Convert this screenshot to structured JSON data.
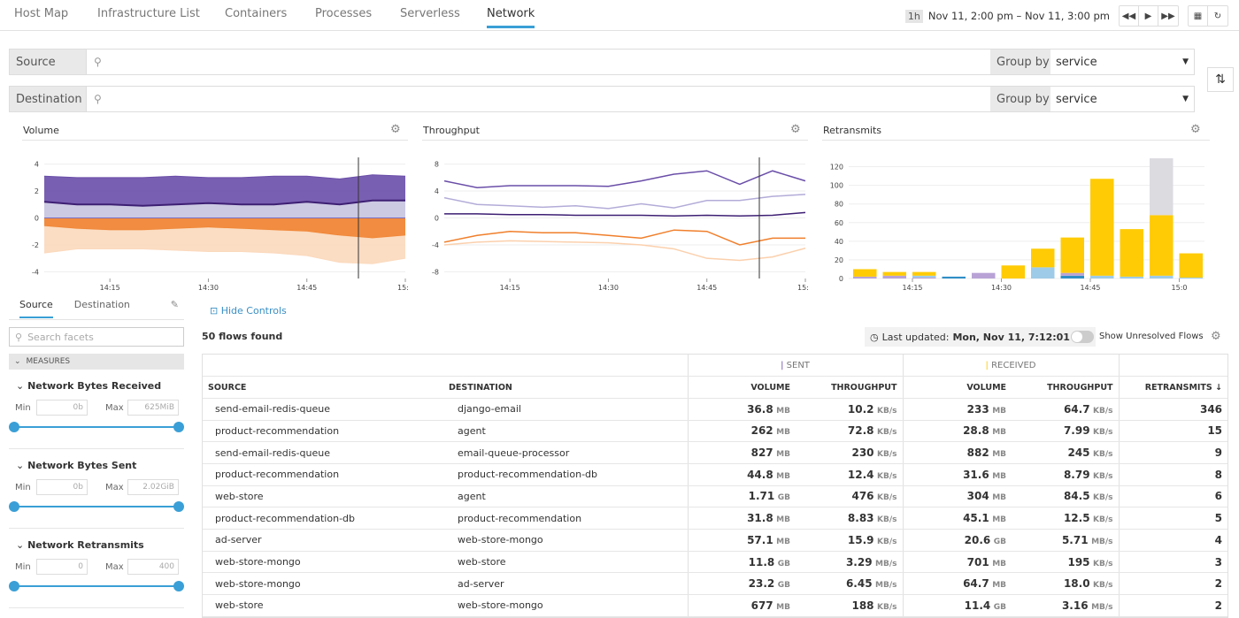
{
  "nav": {
    "tabs": [
      "Host Map",
      "Infrastructure List",
      "Containers",
      "Processes",
      "Serverless",
      "Network"
    ],
    "active": "Network"
  },
  "time": {
    "span": "1h",
    "range": "Nov 11, 2:00 pm – Nov 11, 3:00 pm"
  },
  "query": {
    "source_label": "Source",
    "destination_label": "Destination",
    "group_by_label": "Group by",
    "source_group": "service",
    "destination_group": "service"
  },
  "charts": {
    "volume": {
      "title": "Volume",
      "yticks": [
        "4",
        "2",
        "0",
        "-2",
        "-4"
      ],
      "xticks": [
        "14:15",
        "14:30",
        "14:45",
        "15:0"
      ]
    },
    "throughput": {
      "title": "Throughput",
      "yticks": [
        "8",
        "4",
        "0",
        "-4",
        "-8"
      ],
      "xticks": [
        "14:15",
        "14:30",
        "14:45",
        "15:0"
      ]
    },
    "retransmits": {
      "title": "Retransmits",
      "yticks": [
        "120",
        "100",
        "80",
        "60",
        "40",
        "20",
        "0"
      ],
      "xticks": [
        "14:15",
        "14:30",
        "14:45",
        "15:0"
      ]
    }
  },
  "chart_data": [
    {
      "type": "area",
      "title": "Volume",
      "ylim": [
        -4.5,
        4.5
      ],
      "x": [
        "14:05",
        "14:10",
        "14:15",
        "14:20",
        "14:25",
        "14:30",
        "14:35",
        "14:40",
        "14:45",
        "14:50",
        "14:55",
        "15:00"
      ],
      "series": [
        {
          "color": "#6a4ea8",
          "values": [
            3.1,
            3.0,
            3.0,
            3.0,
            3.1,
            3.0,
            3.0,
            3.1,
            3.1,
            2.9,
            3.2,
            3.1
          ]
        },
        {
          "color": "#c6c3e0",
          "values": [
            1.2,
            1.0,
            1.0,
            0.9,
            1.0,
            1.1,
            1.0,
            1.0,
            1.2,
            1.0,
            1.3,
            1.3
          ]
        },
        {
          "color": "#f07f2b",
          "values": [
            -0.6,
            -0.8,
            -0.9,
            -0.9,
            -0.8,
            -0.7,
            -0.8,
            -0.9,
            -1.0,
            -1.3,
            -1.5,
            -1.3
          ]
        },
        {
          "color": "#fbd9bd",
          "values": [
            -2.6,
            -2.3,
            -2.3,
            -2.3,
            -2.4,
            -2.5,
            -2.5,
            -2.6,
            -2.8,
            -3.3,
            -3.4,
            -3.0
          ]
        }
      ]
    },
    {
      "type": "line",
      "title": "Throughput",
      "ylim": [
        -9,
        9
      ],
      "x": [
        "14:05",
        "14:10",
        "14:15",
        "14:20",
        "14:25",
        "14:30",
        "14:35",
        "14:40",
        "14:45",
        "14:50",
        "14:55",
        "15:00"
      ],
      "series": [
        {
          "color": "#6a4ea8",
          "values": [
            5.5,
            4.5,
            4.8,
            4.8,
            4.8,
            4.7,
            5.5,
            6.5,
            7.0,
            5.0,
            7.0,
            5.5
          ]
        },
        {
          "color": "#b3acd8",
          "values": [
            3.0,
            2.0,
            1.8,
            1.6,
            1.8,
            1.4,
            2.1,
            1.5,
            2.6,
            2.6,
            3.2,
            3.5
          ]
        },
        {
          "color": "#3d1f73",
          "values": [
            0.6,
            0.6,
            0.5,
            0.5,
            0.4,
            0.4,
            0.4,
            0.3,
            0.4,
            0.3,
            0.4,
            0.8
          ]
        },
        {
          "color": "#f07f2b",
          "values": [
            -3.6,
            -2.6,
            -2.0,
            -2.2,
            -2.2,
            -2.6,
            -3.0,
            -1.8,
            -2.0,
            -4.0,
            -3.0,
            -3.0
          ]
        },
        {
          "color": "#fbd0ad",
          "values": [
            -4.0,
            -3.6,
            -3.4,
            -3.5,
            -3.6,
            -3.7,
            -4.0,
            -4.6,
            -6.0,
            -6.3,
            -5.8,
            -4.5
          ]
        }
      ]
    },
    {
      "type": "bar",
      "title": "Retransmits",
      "ylim": [
        0,
        130
      ],
      "x": [
        "14:05",
        "14:10",
        "14:15",
        "14:20",
        "14:25",
        "14:30",
        "14:35",
        "14:40",
        "14:45",
        "14:50",
        "14:55",
        "15:00"
      ],
      "series": [
        {
          "color": "#ffcb05",
          "values": [
            8,
            4,
            4,
            0,
            0,
            14,
            20,
            38,
            104,
            51,
            65,
            26
          ]
        },
        {
          "color": "#9ecbe8",
          "values": [
            0,
            0,
            2,
            0,
            0,
            0,
            12,
            0,
            3,
            2,
            3,
            1
          ]
        },
        {
          "color": "#b9a3d6",
          "values": [
            2,
            3,
            1,
            0,
            6,
            0,
            0,
            3,
            0,
            0,
            0,
            0
          ]
        },
        {
          "color": "#2f8ec6",
          "values": [
            0,
            0,
            0,
            2,
            0,
            0,
            0,
            3,
            0,
            0,
            0,
            0
          ]
        },
        {
          "color": "#dcdbe0",
          "values": [
            0,
            0,
            0,
            0,
            0,
            0,
            0,
            0,
            0,
            0,
            61,
            0
          ]
        }
      ]
    }
  ],
  "sidebar": {
    "tabs": [
      "Source",
      "Destination"
    ],
    "search_placeholder": "Search facets",
    "measures_label": "MEASURES",
    "measures": [
      {
        "title": "Network Bytes Received",
        "min": "0b",
        "max": "625MiB"
      },
      {
        "title": "Network Bytes Sent",
        "min": "0b",
        "max": "2.02GiB"
      },
      {
        "title": "Network Retransmits",
        "min": "0",
        "max": "400"
      }
    ],
    "min_label": "Min",
    "max_label": "Max"
  },
  "controls": {
    "hide": "Hide Controls",
    "flows": "50 flows found",
    "last_updated_label": "Last updated:",
    "last_updated": "Mon, Nov 11, 7:12:01 pm",
    "unresolved": "Show Unresolved Flows"
  },
  "table": {
    "sent": "SENT",
    "received": "RECEIVED",
    "cols": [
      "SOURCE",
      "DESTINATION",
      "VOLUME",
      "THROUGHPUT",
      "VOLUME",
      "THROUGHPUT",
      "RETRANSMITS ↓"
    ],
    "rows": [
      [
        "send-email-redis-queue",
        "django-email",
        "36.8",
        "MB",
        "10.2",
        "KB/s",
        "233",
        "MB",
        "64.7",
        "KB/s",
        "346"
      ],
      [
        "product-recommendation",
        "agent",
        "262",
        "MB",
        "72.8",
        "KB/s",
        "28.8",
        "MB",
        "7.99",
        "KB/s",
        "15"
      ],
      [
        "send-email-redis-queue",
        "email-queue-processor",
        "827",
        "MB",
        "230",
        "KB/s",
        "882",
        "MB",
        "245",
        "KB/s",
        "9"
      ],
      [
        "product-recommendation",
        "product-recommendation-db",
        "44.8",
        "MB",
        "12.4",
        "KB/s",
        "31.6",
        "MB",
        "8.79",
        "KB/s",
        "8"
      ],
      [
        "web-store",
        "agent",
        "1.71",
        "GB",
        "476",
        "KB/s",
        "304",
        "MB",
        "84.5",
        "KB/s",
        "6"
      ],
      [
        "product-recommendation-db",
        "product-recommendation",
        "31.8",
        "MB",
        "8.83",
        "KB/s",
        "45.1",
        "MB",
        "12.5",
        "KB/s",
        "5"
      ],
      [
        "ad-server",
        "web-store-mongo",
        "57.1",
        "MB",
        "15.9",
        "KB/s",
        "20.6",
        "GB",
        "5.71",
        "MB/s",
        "4"
      ],
      [
        "web-store-mongo",
        "web-store",
        "11.8",
        "GB",
        "3.29",
        "MB/s",
        "701",
        "MB",
        "195",
        "KB/s",
        "3"
      ],
      [
        "web-store-mongo",
        "ad-server",
        "23.2",
        "GB",
        "6.45",
        "MB/s",
        "64.7",
        "MB",
        "18.0",
        "KB/s",
        "2"
      ],
      [
        "web-store",
        "web-store-mongo",
        "677",
        "MB",
        "188",
        "KB/s",
        "11.4",
        "GB",
        "3.16",
        "MB/s",
        "2"
      ]
    ]
  }
}
